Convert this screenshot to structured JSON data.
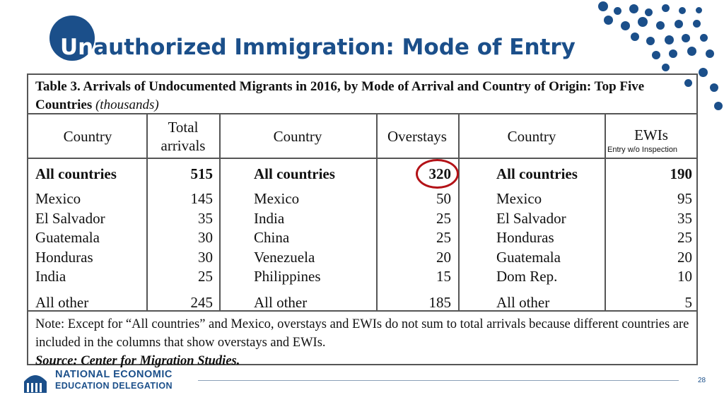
{
  "slide": {
    "title_highlight": "Un",
    "title_rest": "authorized Immigration: Mode of Entry",
    "page_number": "28",
    "brand_color": "#1b4f8a",
    "accent_color": "#b31217"
  },
  "table": {
    "caption_bold": "Table 3. Arrivals of Undocumented Migrants in 2016, by Mode of Arrival and Country of Origin: Top Five Countries",
    "caption_italic": "(thousands)",
    "headers": {
      "country1": "Country",
      "total_l1": "Total",
      "total_l2": "arrivals",
      "country2": "Country",
      "overstays": "Overstays",
      "country3": "Country",
      "ewis": "EWIs",
      "ewis_sub": "Entry w/o Inspection"
    },
    "summary": {
      "c1": "All countries",
      "v1": "515",
      "c2": "All countries",
      "v2": "320",
      "c3": "All countries",
      "v3": "190"
    },
    "rows": [
      {
        "c1": "Mexico",
        "v1": "145",
        "c2": "Mexico",
        "v2": "50",
        "c3": "Mexico",
        "v3": "95"
      },
      {
        "c1": "El Salvador",
        "v1": "35",
        "c2": "India",
        "v2": "25",
        "c3": "El Salvador",
        "v3": "35"
      },
      {
        "c1": "Guatemala",
        "v1": "30",
        "c2": "China",
        "v2": "25",
        "c3": "Honduras",
        "v3": "25"
      },
      {
        "c1": "Honduras",
        "v1": "30",
        "c2": "Venezuela",
        "v2": "20",
        "c3": "Guatemala",
        "v3": "20"
      },
      {
        "c1": "India",
        "v1": "25",
        "c2": "Philippines",
        "v2": "15",
        "c3": "Dom Rep.",
        "v3": "10"
      }
    ],
    "other": {
      "c1": "All other",
      "v1": "245",
      "c2": "All other",
      "v2": "185",
      "c3": "All other",
      "v3": "5"
    },
    "note": "Note: Except for “All countries” and Mexico, overstays and EWIs do not sum to total arrivals because different countries are included in the columns that show overstays and EWIs.",
    "source": "Source: Center for Migration Studies."
  },
  "logo": {
    "line1": "NATIONAL ECONOMIC",
    "line2": "EDUCATION DELEGATION"
  }
}
